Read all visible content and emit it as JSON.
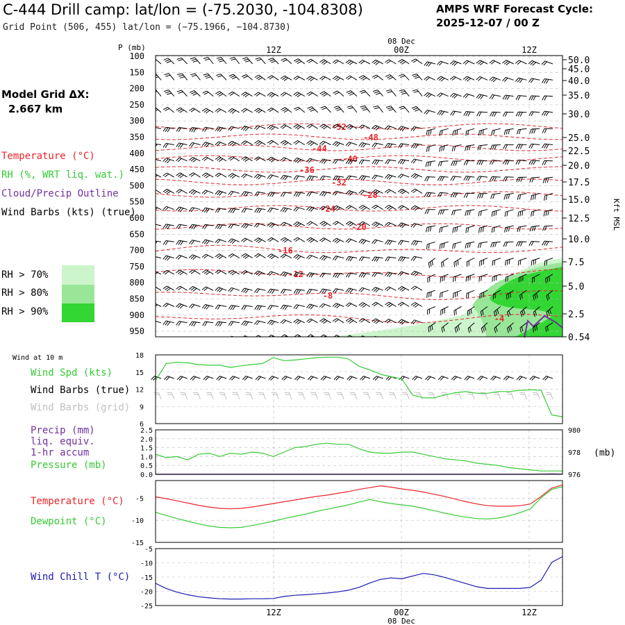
{
  "header": {
    "title": "C-444 Drill camp:  lat/lon = (-75.2030, -104.8308)",
    "subtitle": "Grid Point (506, 455) lat/lon = (−75.1966, −104.8730)",
    "cycle_line1": "AMPS WRF Forecast Cycle:",
    "cycle_line2": "2025-12-07 / 00  Z"
  },
  "grid": {
    "line1": "Model Grid ΔX:",
    "line2": "2.667 km"
  },
  "legend": {
    "temperature": "Temperature (°C)",
    "rh": "RH (%, WRT liq. wat.)",
    "cloud": "Cloud/Precip Outline",
    "barbs": "Wind Barbs (kts) (true)",
    "rh70": "RH > 70%",
    "rh80": "RH > 80%",
    "rh90": "RH > 90%"
  },
  "colors": {
    "temp": "#e8242a",
    "rh70": "#ccf5cc",
    "rh80": "#99e699",
    "rh90": "#33d633",
    "green": "#33cc33",
    "purple": "#7030a0",
    "blue": "#1a1ab0",
    "gray": "#c0c0c0"
  },
  "time_axis": {
    "date_label": "08 Dec",
    "ticks": [
      "12Z",
      "00Z",
      "12Z"
    ]
  },
  "profile": {
    "p_label": "P (mb)",
    "pressure_ticks": [
      "100",
      "150",
      "200",
      "250",
      "300",
      "350",
      "400",
      "450",
      "500",
      "550",
      "600",
      "650",
      "700",
      "750",
      "800",
      "850",
      "900",
      "950"
    ],
    "height_label": "Kft MSL",
    "height_ticks": [
      "50.0",
      "45.0",
      "40.0",
      "35.0",
      "30.0",
      "25.0",
      "22.5",
      "20.0",
      "17.5",
      "15.0",
      "12.5",
      "10.0",
      "7.5",
      "5.0",
      "2.5",
      "0.54"
    ],
    "contour_labels": [
      "-52",
      "-48",
      "-44",
      "-40",
      "-36",
      "-32",
      "-28",
      "-24",
      "-20",
      "-16",
      "-12",
      "-8",
      "-4"
    ]
  },
  "wind_panel": {
    "title": "Wind at 10 m",
    "label_speed": "Wind Spd (kts)",
    "label_barbs": "Wind Barbs (true)",
    "label_barbs_grid": "Wind Barbs (grid)",
    "yticks": [
      "18",
      "15",
      "12",
      "9",
      "6"
    ]
  },
  "precip_panel": {
    "label1": "Precip (mm)",
    "label2": "liq. equiv.",
    "label3": "1-hr accum",
    "label4": "Pressure (mb)",
    "unit": "(mb)",
    "yticks_left": [
      "2.5",
      "2.0",
      "1.5",
      "1.0",
      "0.5",
      "0.0"
    ],
    "yticks_right": [
      "980",
      "978",
      "976"
    ]
  },
  "temp_panel": {
    "label_temp": "Temperature (°C)",
    "label_dew": "Dewpoint (°C)",
    "yticks": [
      "-5",
      "-10",
      "-15"
    ]
  },
  "chill_panel": {
    "label": "Wind Chill T (°C)",
    "yticks": [
      "-5",
      "-10",
      "-15",
      "-20",
      "-25"
    ]
  },
  "chart_data": [
    {
      "type": "line",
      "title": "Wind at 10 m",
      "ylabel": "Wind Spd (kts)",
      "ylim": [
        6,
        18
      ],
      "x": [
        0,
        1,
        2,
        3,
        4,
        5,
        6,
        7,
        8,
        9,
        10,
        11,
        12,
        13,
        14,
        15,
        16,
        17,
        18,
        19,
        20,
        21,
        22,
        23,
        24,
        25,
        26,
        27,
        28,
        29,
        30,
        31,
        32,
        33,
        34,
        35,
        36,
        37,
        38
      ],
      "series": [
        {
          "name": "Wind Spd (kts)",
          "values": [
            13.5,
            16.5,
            16.7,
            16.6,
            16.3,
            16.2,
            16.2,
            15.8,
            16.1,
            16.3,
            16.5,
            17.5,
            17.0,
            17.1,
            17.3,
            17.5,
            17.6,
            17.6,
            17.3,
            16.0,
            15.4,
            14.6,
            14.2,
            13.8,
            11.0,
            10.5,
            10.5,
            11.0,
            11.4,
            11.6,
            11.3,
            11.3,
            11.6,
            11.6,
            11.8,
            11.9,
            11.8,
            7.5,
            7.2
          ]
        }
      ]
    },
    {
      "type": "line",
      "title": "Precip / Pressure",
      "ylabel": "Pressure (mb)",
      "ylim": [
        976,
        980
      ],
      "x": [
        0,
        1,
        2,
        3,
        4,
        5,
        6,
        7,
        8,
        9,
        10,
        11,
        12,
        13,
        14,
        15,
        16,
        17,
        18,
        19,
        20,
        21,
        22,
        23,
        24,
        25,
        26,
        27,
        28,
        29,
        30,
        31,
        32,
        33,
        34,
        35,
        36,
        37,
        38
      ],
      "series": [
        {
          "name": "Pressure (mb)",
          "values": [
            977.8,
            977.5,
            977.6,
            977.3,
            977.8,
            977.9,
            977.6,
            977.9,
            977.8,
            978.0,
            977.9,
            977.6,
            978.0,
            978.4,
            978.5,
            978.7,
            978.8,
            978.7,
            978.7,
            978.3,
            978.0,
            977.9,
            977.9,
            978.0,
            978.0,
            977.8,
            977.6,
            977.4,
            977.3,
            977.2,
            977.0,
            976.9,
            976.8,
            976.6,
            976.5,
            976.4,
            976.3,
            976.3,
            976.3
          ]
        },
        {
          "name": "Precip (mm)",
          "values": [
            0,
            0,
            0,
            0,
            0,
            0,
            0,
            0,
            0,
            0,
            0,
            0,
            0,
            0,
            0,
            0,
            0,
            0,
            0,
            0,
            0,
            0,
            0,
            0,
            0,
            0,
            0,
            0,
            0,
            0,
            0,
            0,
            0,
            0,
            0,
            0,
            0.01,
            0.02,
            0.01
          ]
        }
      ]
    },
    {
      "type": "line",
      "title": "Temperature / Dewpoint",
      "ylabel": "°C",
      "ylim": [
        -15,
        -1
      ],
      "x": [
        0,
        1,
        2,
        3,
        4,
        5,
        6,
        7,
        8,
        9,
        10,
        11,
        12,
        13,
        14,
        15,
        16,
        17,
        18,
        19,
        20,
        21,
        22,
        23,
        24,
        25,
        26,
        27,
        28,
        29,
        30,
        31,
        32,
        33,
        34,
        35,
        36,
        37,
        38
      ],
      "series": [
        {
          "name": "Temperature (°C)",
          "values": [
            -4.7,
            -5.1,
            -5.6,
            -6.1,
            -6.6,
            -7.0,
            -7.3,
            -7.4,
            -7.3,
            -7.0,
            -6.6,
            -6.2,
            -5.8,
            -5.4,
            -5.0,
            -4.6,
            -4.3,
            -3.9,
            -3.5,
            -3.0,
            -2.6,
            -2.2,
            -2.5,
            -2.9,
            -3.2,
            -3.6,
            -4.1,
            -4.6,
            -5.2,
            -5.8,
            -6.3,
            -6.7,
            -6.8,
            -6.8,
            -6.7,
            -6.3,
            -4.6,
            -2.7,
            -2.0
          ]
        },
        {
          "name": "Dewpoint (°C)",
          "values": [
            -8.2,
            -8.9,
            -9.6,
            -10.2,
            -10.8,
            -11.3,
            -11.6,
            -11.7,
            -11.6,
            -11.2,
            -10.7,
            -10.2,
            -9.6,
            -9.1,
            -8.6,
            -8.0,
            -7.5,
            -7.0,
            -6.5,
            -5.9,
            -5.3,
            -5.8,
            -6.2,
            -6.5,
            -6.8,
            -7.3,
            -7.8,
            -8.4,
            -8.9,
            -9.3,
            -9.6,
            -9.7,
            -9.5,
            -9.0,
            -8.3,
            -7.4,
            -4.9,
            -3.0,
            -2.4
          ]
        }
      ]
    },
    {
      "type": "line",
      "title": "Wind Chill T",
      "ylabel": "Wind Chill T (°C)",
      "ylim": [
        -25,
        -5
      ],
      "x": [
        0,
        1,
        2,
        3,
        4,
        5,
        6,
        7,
        8,
        9,
        10,
        11,
        12,
        13,
        14,
        15,
        16,
        17,
        18,
        19,
        20,
        21,
        22,
        23,
        24,
        25,
        26,
        27,
        28,
        29,
        30,
        31,
        32,
        33,
        34,
        35,
        36,
        37,
        38
      ],
      "series": [
        {
          "name": "Wind Chill T (°C)",
          "values": [
            -17.2,
            -19.0,
            -20.3,
            -21.2,
            -21.9,
            -22.3,
            -22.6,
            -22.7,
            -22.7,
            -22.6,
            -22.6,
            -22.5,
            -21.8,
            -21.4,
            -21.2,
            -20.9,
            -20.6,
            -20.2,
            -19.6,
            -18.6,
            -17.1,
            -15.8,
            -15.3,
            -15.6,
            -14.6,
            -13.7,
            -14.2,
            -15.1,
            -16.2,
            -17.3,
            -18.4,
            -19.0,
            -19.0,
            -19.0,
            -19.0,
            -18.6,
            -16.1,
            -9.8,
            -7.8
          ]
        }
      ]
    }
  ]
}
